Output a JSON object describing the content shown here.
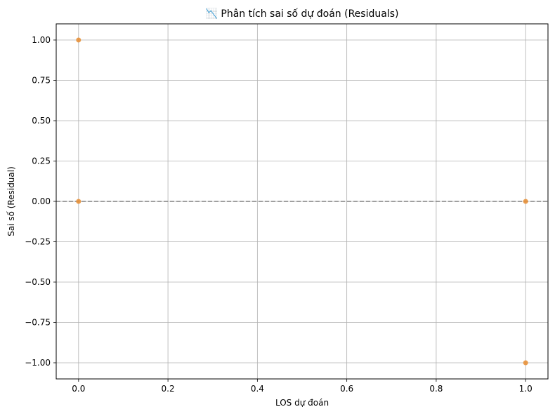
{
  "chart_data": {
    "type": "scatter",
    "title": "📉 Phân tích sai số dự đoán (Residuals)",
    "xlabel": "LOS dự đoán",
    "ylabel": "Sai số (Residual)",
    "xlim": [
      -0.05,
      1.05
    ],
    "ylim": [
      -1.1,
      1.1
    ],
    "xticks": [
      0.0,
      0.2,
      0.4,
      0.6,
      0.8,
      1.0
    ],
    "xtick_labels": [
      "0.0",
      "0.2",
      "0.4",
      "0.6",
      "0.8",
      "1.0"
    ],
    "yticks": [
      -1.0,
      -0.75,
      -0.5,
      -0.25,
      0.0,
      0.25,
      0.5,
      0.75,
      1.0
    ],
    "ytick_labels": [
      "−1.00",
      "−0.75",
      "−0.50",
      "−0.25",
      "0.00",
      "0.25",
      "0.50",
      "0.75",
      "1.00"
    ],
    "grid": true,
    "reference_line": {
      "y": 0,
      "style": "dashed",
      "color": "#808080"
    },
    "marker_color": "#e8913a",
    "points": [
      {
        "x": 0.0,
        "y": 1.0
      },
      {
        "x": 0.0,
        "y": 0.0
      },
      {
        "x": 1.0,
        "y": 0.0
      },
      {
        "x": 1.0,
        "y": -1.0
      }
    ]
  }
}
